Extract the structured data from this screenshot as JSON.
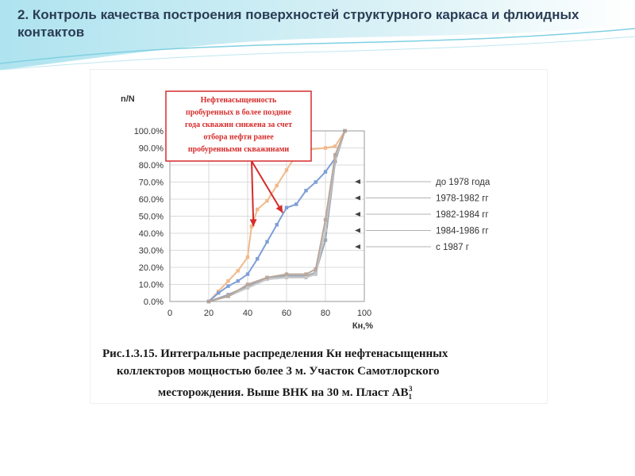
{
  "slide": {
    "title": "2. Контроль качества построения поверхностей структурного каркаса и флюидных контактов"
  },
  "caption": {
    "line1": "Рис.1.3.15. Интегральные распределения Кн нефтенасыщенных",
    "line2": "коллекторов мощностью более 3 м. Участок Самотлорского",
    "line3": "месторождения. Выше ВНК на 30 м. Пласт АВ",
    "layer_sub": "1",
    "layer_sup": "3"
  },
  "chart_data": {
    "type": "line",
    "ylabel": "n/N",
    "xlabel": "Кн,%",
    "xlim": [
      0,
      100
    ],
    "ylim": [
      0,
      100
    ],
    "x_ticks": [
      "0",
      "20",
      "40",
      "60",
      "80",
      "100"
    ],
    "y_ticks": [
      "0.0%",
      "10.0%",
      "20.0%",
      "30.0%",
      "40.0%",
      "50.0%",
      "60.0%",
      "70.0%",
      "80.0%",
      "90.0%",
      "100.0%"
    ],
    "grid": true,
    "legend_position": "right",
    "annotation": {
      "lines": [
        "Нефтенасыщенность",
        "пробуренных в более поздние",
        "года скважин снижена за счет",
        "отбора нефти ранее",
        "пробуренными скважинами"
      ],
      "color": "#d62b2b",
      "targets": [
        [
          43,
          44
        ],
        [
          58,
          52
        ]
      ]
    },
    "series": [
      {
        "name": "до 1978 года",
        "color": "#9aa6b8",
        "x": [
          20,
          30,
          40,
          50,
          60,
          70,
          75,
          80,
          85,
          90
        ],
        "y": [
          0,
          4,
          9,
          14,
          15,
          15,
          17,
          36,
          82,
          100
        ]
      },
      {
        "name": "1978-1982 гг",
        "color": "#f2b98a",
        "x": [
          20,
          25,
          30,
          35,
          40,
          42,
          45,
          50,
          55,
          60,
          65,
          70,
          80,
          85,
          90
        ],
        "y": [
          0,
          6,
          12,
          18,
          26,
          44,
          54,
          59,
          68,
          77,
          86,
          89,
          90,
          91,
          100
        ]
      },
      {
        "name": "1982-1984 гг",
        "color": "#7e9fd6",
        "x": [
          20,
          25,
          30,
          35,
          40,
          45,
          50,
          55,
          60,
          65,
          70,
          75,
          80,
          85,
          90
        ],
        "y": [
          0,
          5,
          9,
          12,
          16,
          25,
          35,
          45,
          55,
          57,
          65,
          70,
          76,
          84,
          100
        ]
      },
      {
        "name": "1984-1986 гг",
        "color": "#c7c7c7",
        "x": [
          20,
          30,
          40,
          50,
          60,
          70,
          75,
          80,
          85,
          90
        ],
        "y": [
          0,
          3,
          8,
          13,
          14,
          14,
          16,
          42,
          84,
          100
        ]
      },
      {
        "name": "с 1987 г",
        "color": "#b9a79a",
        "x": [
          20,
          30,
          40,
          50,
          60,
          70,
          75,
          80,
          85,
          90
        ],
        "y": [
          0,
          3,
          10,
          14,
          16,
          16,
          19,
          48,
          86,
          100
        ]
      }
    ]
  }
}
